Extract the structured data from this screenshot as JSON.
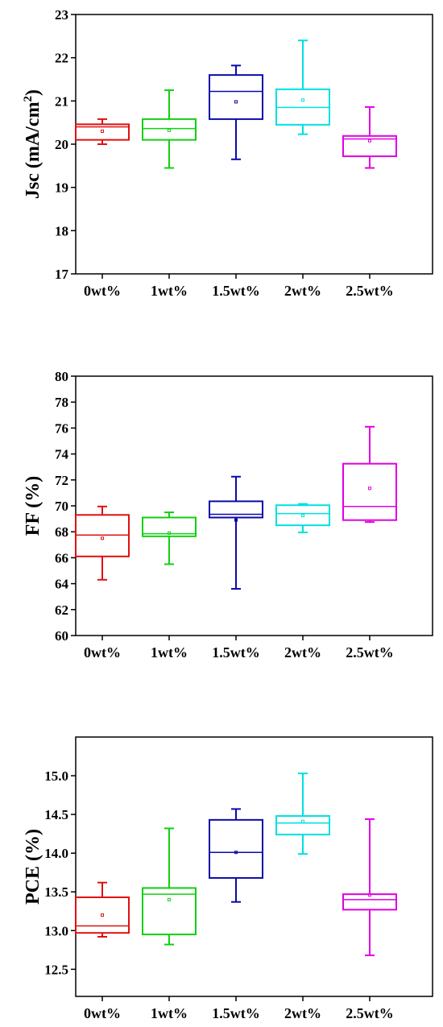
{
  "chart_data": [
    {
      "type": "box",
      "ylabel": "Jsc (mA/cm",
      "ylabel_sup": "2",
      "ylabel_close": ")",
      "categories": [
        "0wt%",
        "1wt%",
        "1.5wt%",
        "2wt%",
        "2.5wt%"
      ],
      "colors": [
        "#e01010",
        "#10d010",
        "#0a0aa8",
        "#00e0e0",
        "#e000e0"
      ],
      "ylim": [
        17,
        23
      ],
      "yticks": [
        "17",
        "18",
        "19",
        "20",
        "21",
        "22",
        "23"
      ],
      "boxes": [
        {
          "min": 20.0,
          "q1": 20.1,
          "median": 20.4,
          "q3": 20.46,
          "max": 20.58,
          "mean": 20.3
        },
        {
          "min": 19.45,
          "q1": 20.1,
          "median": 20.36,
          "q3": 20.58,
          "max": 21.25,
          "mean": 20.32
        },
        {
          "min": 19.65,
          "q1": 20.58,
          "median": 21.22,
          "q3": 21.6,
          "max": 21.82,
          "mean": 20.98
        },
        {
          "min": 20.23,
          "q1": 20.45,
          "median": 20.85,
          "q3": 21.27,
          "max": 22.4,
          "mean": 21.02
        },
        {
          "min": 19.45,
          "q1": 19.72,
          "median": 20.12,
          "q3": 20.19,
          "max": 20.86,
          "mean": 20.08
        }
      ]
    },
    {
      "type": "box",
      "ylabel": "FF (%)",
      "ylabel_sup": "",
      "ylabel_close": "",
      "categories": [
        "0wt%",
        "1wt%",
        "1.5wt%",
        "2wt%",
        "2.5wt%"
      ],
      "colors": [
        "#e01010",
        "#10d010",
        "#0a0aa8",
        "#00e0e0",
        "#e000e0"
      ],
      "ylim": [
        60,
        80
      ],
      "yticks": [
        "60",
        "62",
        "64",
        "66",
        "68",
        "70",
        "72",
        "74",
        "76",
        "78",
        "80"
      ],
      "boxes": [
        {
          "min": 64.3,
          "q1": 66.1,
          "median": 67.75,
          "q3": 69.3,
          "max": 69.95,
          "mean": 67.5
        },
        {
          "min": 65.5,
          "q1": 67.65,
          "median": 67.85,
          "q3": 69.1,
          "max": 69.5,
          "mean": 67.9
        },
        {
          "min": 63.6,
          "q1": 69.1,
          "median": 69.35,
          "q3": 70.35,
          "max": 72.25,
          "mean": 68.9
        },
        {
          "min": 67.95,
          "q1": 68.5,
          "median": 69.4,
          "q3": 70.05,
          "max": 70.15,
          "mean": 69.25
        },
        {
          "min": 68.75,
          "q1": 68.9,
          "median": 69.95,
          "q3": 73.25,
          "max": 76.1,
          "mean": 71.35
        }
      ]
    },
    {
      "type": "box",
      "ylabel": "PCE (%)",
      "ylabel_sup": "",
      "ylabel_close": "",
      "categories": [
        "0wt%",
        "1wt%",
        "1.5wt%",
        "2wt%",
        "2.5wt%"
      ],
      "colors": [
        "#e01010",
        "#10d010",
        "#0a0aa8",
        "#00e0e0",
        "#e000e0"
      ],
      "ylim": [
        12.15,
        15.5
      ],
      "yticks": [
        "12.5",
        "13.0",
        "13.5",
        "14.0",
        "14.5",
        "15.0"
      ],
      "boxes": [
        {
          "min": 12.92,
          "q1": 12.97,
          "median": 13.06,
          "q3": 13.43,
          "max": 13.62,
          "mean": 13.2
        },
        {
          "min": 12.82,
          "q1": 12.95,
          "median": 13.47,
          "q3": 13.55,
          "max": 14.32,
          "mean": 13.4
        },
        {
          "min": 13.37,
          "q1": 13.68,
          "median": 14.01,
          "q3": 14.43,
          "max": 14.57,
          "mean": 14.01
        },
        {
          "min": 13.99,
          "q1": 14.24,
          "median": 14.39,
          "q3": 14.48,
          "max": 15.03,
          "mean": 14.41
        },
        {
          "min": 12.68,
          "q1": 13.27,
          "median": 13.4,
          "q3": 13.47,
          "max": 14.44,
          "mean": 13.46
        }
      ]
    }
  ]
}
